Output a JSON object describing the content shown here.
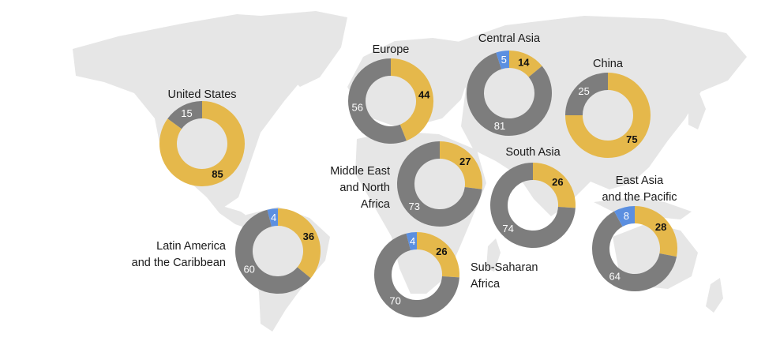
{
  "colors": {
    "gold": "#e5b84b",
    "gray": "#7d7d7d",
    "blue": "#5b8fe0",
    "map": "#e6e6e6",
    "label_dark": "#111111",
    "label_light": "#ffffff"
  },
  "chart_data": [
    {
      "type": "pie",
      "region_lines": [
        "United States"
      ],
      "slices": [
        {
          "value": 85,
          "color": "gold"
        },
        {
          "value": 15,
          "color": "gray"
        }
      ]
    },
    {
      "type": "pie",
      "region_lines": [
        "Europe"
      ],
      "slices": [
        {
          "value": 44,
          "color": "gold"
        },
        {
          "value": 56,
          "color": "gray"
        }
      ]
    },
    {
      "type": "pie",
      "region_lines": [
        "Central Asia"
      ],
      "slices": [
        {
          "value": 14,
          "color": "gold"
        },
        {
          "value": 81,
          "color": "gray"
        },
        {
          "value": 5,
          "color": "blue"
        }
      ]
    },
    {
      "type": "pie",
      "region_lines": [
        "China"
      ],
      "slices": [
        {
          "value": 75,
          "color": "gold"
        },
        {
          "value": 25,
          "color": "gray"
        }
      ]
    },
    {
      "type": "pie",
      "region_lines": [
        "Middle East",
        "and North",
        "Africa"
      ],
      "slices": [
        {
          "value": 27,
          "color": "gold"
        },
        {
          "value": 73,
          "color": "gray"
        }
      ]
    },
    {
      "type": "pie",
      "region_lines": [
        "South Asia"
      ],
      "slices": [
        {
          "value": 26,
          "color": "gold"
        },
        {
          "value": 74,
          "color": "gray"
        }
      ]
    },
    {
      "type": "pie",
      "region_lines": [
        "East Asia",
        "and the Pacific"
      ],
      "slices": [
        {
          "value": 28,
          "color": "gold"
        },
        {
          "value": 64,
          "color": "gray"
        },
        {
          "value": 8,
          "color": "blue"
        }
      ]
    },
    {
      "type": "pie",
      "region_lines": [
        "Latin America",
        "and the Caribbean"
      ],
      "slices": [
        {
          "value": 36,
          "color": "gold"
        },
        {
          "value": 60,
          "color": "gray"
        },
        {
          "value": 4,
          "color": "blue"
        }
      ]
    },
    {
      "type": "pie",
      "region_lines": [
        "Sub-Saharan",
        "Africa"
      ],
      "slices": [
        {
          "value": 26,
          "color": "gold"
        },
        {
          "value": 70,
          "color": "gray"
        },
        {
          "value": 4,
          "color": "blue"
        }
      ]
    }
  ]
}
